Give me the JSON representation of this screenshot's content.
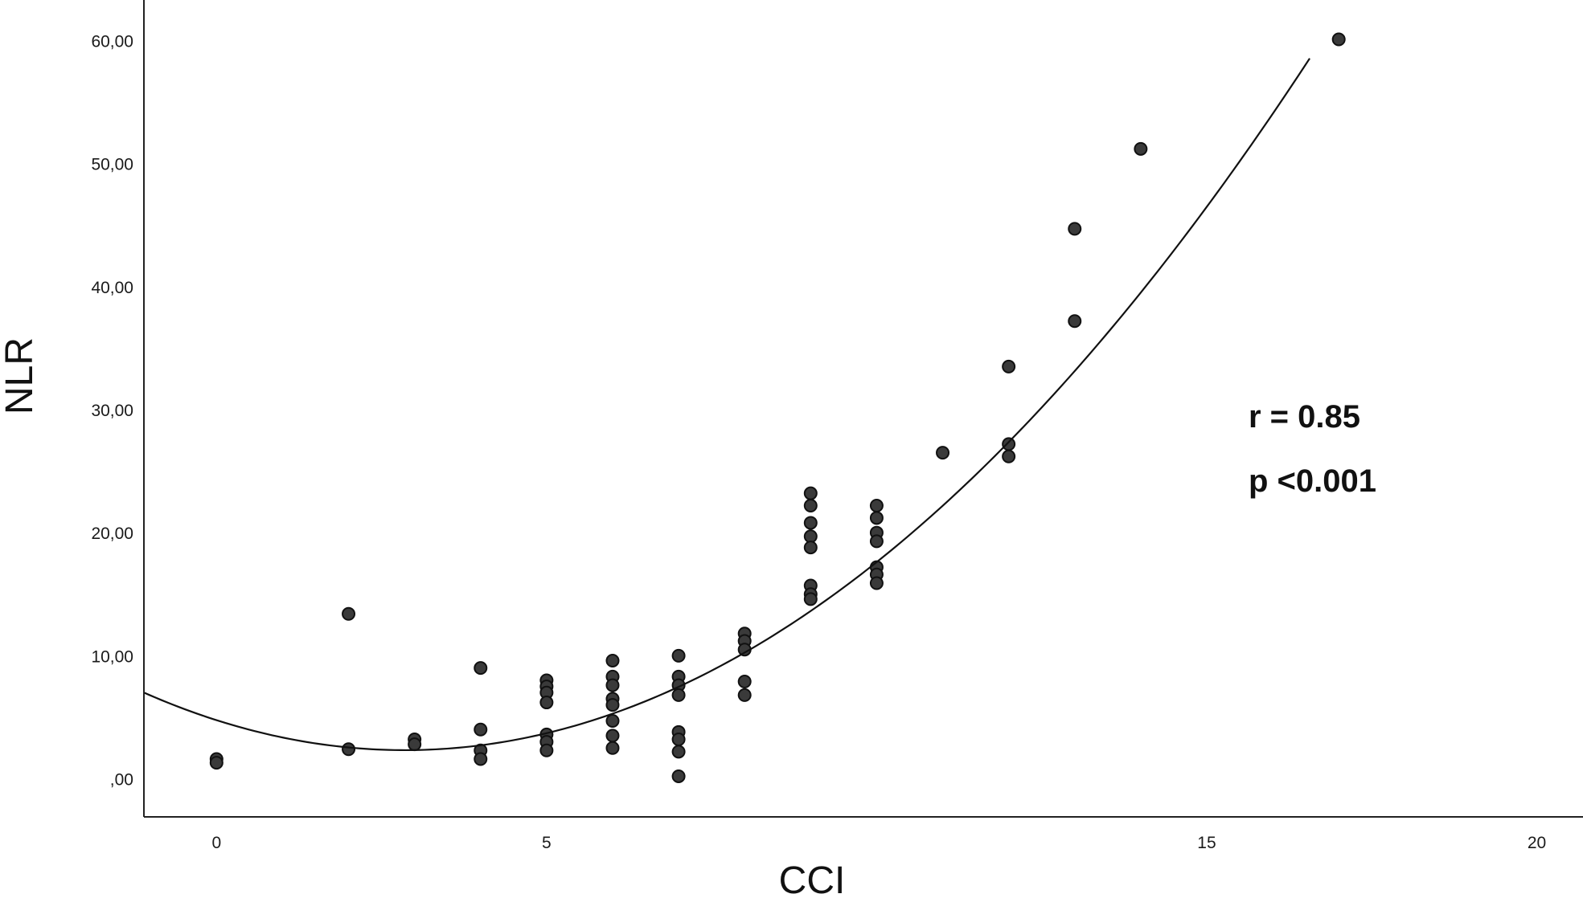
{
  "chart_data": {
    "type": "scatter",
    "title": "",
    "xlabel": "CCI",
    "ylabel": "NLR",
    "xlim": [
      -1.1,
      20.7
    ],
    "ylim": [
      -3.1,
      63.3
    ],
    "x_ticks": [
      {
        "value": 0,
        "label": "0"
      },
      {
        "value": 5,
        "label": "5"
      },
      {
        "value": 15,
        "label": "15"
      },
      {
        "value": 20,
        "label": "20"
      }
    ],
    "y_ticks": [
      {
        "value": 0,
        "label": ",00"
      },
      {
        "value": 10,
        "label": "10,00"
      },
      {
        "value": 20,
        "label": "20,00"
      },
      {
        "value": 30,
        "label": "30,00"
      },
      {
        "value": 40,
        "label": "40,00"
      },
      {
        "value": 50,
        "label": "50,00"
      },
      {
        "value": 60,
        "label": "60,00"
      }
    ],
    "grid": false,
    "legend": "none",
    "points": [
      {
        "x": 0,
        "y": 1.6
      },
      {
        "x": 0,
        "y": 1.3
      },
      {
        "x": 2,
        "y": 13.4
      },
      {
        "x": 2,
        "y": 2.4
      },
      {
        "x": 3,
        "y": 3.2
      },
      {
        "x": 3,
        "y": 2.8
      },
      {
        "x": 4,
        "y": 9.0
      },
      {
        "x": 4,
        "y": 4.0
      },
      {
        "x": 4,
        "y": 2.3
      },
      {
        "x": 4,
        "y": 1.6
      },
      {
        "x": 5,
        "y": 8.0
      },
      {
        "x": 5,
        "y": 7.5
      },
      {
        "x": 5,
        "y": 7.0
      },
      {
        "x": 5,
        "y": 6.2
      },
      {
        "x": 5,
        "y": 3.6
      },
      {
        "x": 5,
        "y": 3.0
      },
      {
        "x": 5,
        "y": 2.3
      },
      {
        "x": 6,
        "y": 9.6
      },
      {
        "x": 6,
        "y": 8.3
      },
      {
        "x": 6,
        "y": 7.6
      },
      {
        "x": 6,
        "y": 6.5
      },
      {
        "x": 6,
        "y": 6.0
      },
      {
        "x": 6,
        "y": 4.7
      },
      {
        "x": 6,
        "y": 3.5
      },
      {
        "x": 6,
        "y": 2.5
      },
      {
        "x": 7,
        "y": 10.0
      },
      {
        "x": 7,
        "y": 8.3
      },
      {
        "x": 7,
        "y": 7.6
      },
      {
        "x": 7,
        "y": 6.8
      },
      {
        "x": 7,
        "y": 3.8
      },
      {
        "x": 7,
        "y": 3.2
      },
      {
        "x": 7,
        "y": 2.2
      },
      {
        "x": 7,
        "y": 0.2
      },
      {
        "x": 8,
        "y": 11.8
      },
      {
        "x": 8,
        "y": 11.2
      },
      {
        "x": 8,
        "y": 10.5
      },
      {
        "x": 8,
        "y": 7.9
      },
      {
        "x": 8,
        "y": 6.8
      },
      {
        "x": 9,
        "y": 23.2
      },
      {
        "x": 9,
        "y": 22.2
      },
      {
        "x": 9,
        "y": 20.8
      },
      {
        "x": 9,
        "y": 19.7
      },
      {
        "x": 9,
        "y": 18.8
      },
      {
        "x": 9,
        "y": 15.7
      },
      {
        "x": 9,
        "y": 15.0
      },
      {
        "x": 9,
        "y": 14.6
      },
      {
        "x": 10,
        "y": 22.2
      },
      {
        "x": 10,
        "y": 21.2
      },
      {
        "x": 10,
        "y": 20.0
      },
      {
        "x": 10,
        "y": 19.3
      },
      {
        "x": 10,
        "y": 17.2
      },
      {
        "x": 10,
        "y": 16.6
      },
      {
        "x": 10,
        "y": 15.9
      },
      {
        "x": 11,
        "y": 26.5
      },
      {
        "x": 12,
        "y": 33.5
      },
      {
        "x": 12,
        "y": 27.2
      },
      {
        "x": 12,
        "y": 26.2
      },
      {
        "x": 13,
        "y": 44.7
      },
      {
        "x": 13,
        "y": 37.2
      },
      {
        "x": 14,
        "y": 51.2
      },
      {
        "x": 17,
        "y": 60.1
      }
    ],
    "fit_line": {
      "type": "quadratic",
      "coefficients": {
        "a": 0.2993,
        "b": -1.708,
        "c": 4.761
      },
      "x_range": [
        -1.1,
        16.56
      ],
      "color": "#111111"
    },
    "annotations": [
      "r = 0.85",
      "p <0.001"
    ],
    "colors": {
      "points": "#3a3a3a",
      "point_outline": "#111111",
      "axis": "#222222",
      "line": "#111111"
    }
  }
}
